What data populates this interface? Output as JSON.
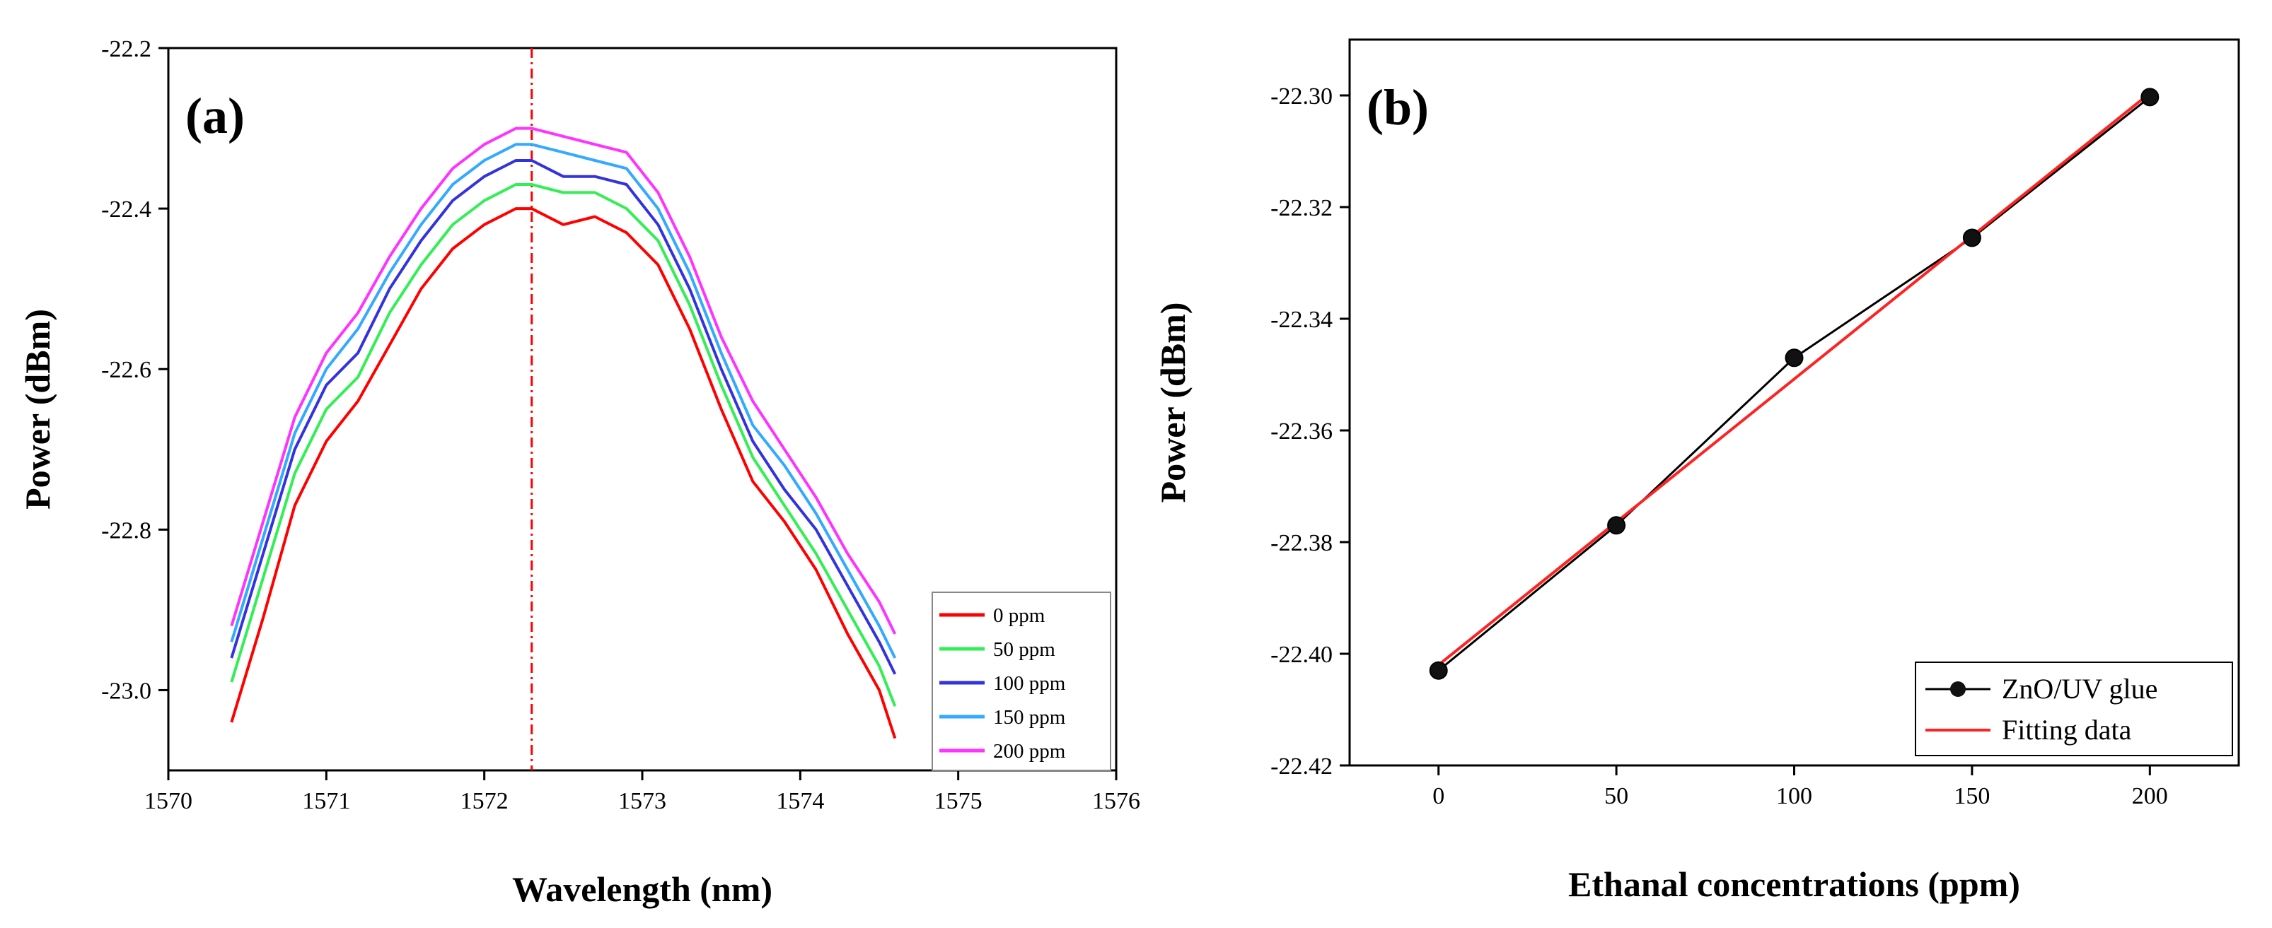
{
  "chart_data": [
    {
      "type": "line",
      "panel_label": "(a)",
      "xlabel": "Wavelength (nm)",
      "ylabel": "Power (dBm)",
      "xlim": [
        1570,
        1576
      ],
      "ylim": [
        -23.1,
        -22.2
      ],
      "xticks": [
        1570,
        1571,
        1572,
        1573,
        1574,
        1575,
        1576
      ],
      "yticks": [
        -22.2,
        -22.4,
        -22.6,
        -22.8,
        -23.0
      ],
      "xtick_labels": [
        "1570",
        "1571",
        "1572",
        "1573",
        "1574",
        "1575",
        "1576"
      ],
      "ytick_labels": [
        "-22.2",
        "-22.4",
        "-22.6",
        "-22.8",
        "-23.0"
      ],
      "vline_x": 1572.3,
      "legend_position": "bottom-right",
      "x": [
        1570.4,
        1570.6,
        1570.8,
        1571.0,
        1571.2,
        1571.4,
        1571.6,
        1571.8,
        1572.0,
        1572.2,
        1572.3,
        1572.5,
        1572.7,
        1572.9,
        1573.1,
        1573.3,
        1573.5,
        1573.7,
        1573.9,
        1574.1,
        1574.3,
        1574.5,
        1574.6
      ],
      "series": [
        {
          "name": "0 ppm",
          "color": "#ff0000",
          "values": [
            -23.04,
            -22.91,
            -22.77,
            -22.69,
            -22.64,
            -22.57,
            -22.5,
            -22.45,
            -22.42,
            -22.4,
            -22.4,
            -22.42,
            -22.41,
            -22.43,
            -22.47,
            -22.55,
            -22.65,
            -22.74,
            -22.79,
            -22.85,
            -22.93,
            -23.0,
            -23.06
          ]
        },
        {
          "name": "50 ppm",
          "color": "#33ee55",
          "values": [
            -22.99,
            -22.86,
            -22.73,
            -22.65,
            -22.61,
            -22.53,
            -22.47,
            -22.42,
            -22.39,
            -22.37,
            -22.37,
            -22.38,
            -22.38,
            -22.4,
            -22.44,
            -22.52,
            -22.62,
            -22.71,
            -22.77,
            -22.83,
            -22.9,
            -22.97,
            -23.02
          ]
        },
        {
          "name": "100 ppm",
          "color": "#3333dd",
          "values": [
            -22.96,
            -22.83,
            -22.7,
            -22.62,
            -22.58,
            -22.5,
            -22.44,
            -22.39,
            -22.36,
            -22.34,
            -22.34,
            -22.36,
            -22.36,
            -22.37,
            -22.42,
            -22.5,
            -22.6,
            -22.69,
            -22.75,
            -22.8,
            -22.87,
            -22.94,
            -22.98
          ]
        },
        {
          "name": "150 ppm",
          "color": "#33aaff",
          "values": [
            -22.94,
            -22.81,
            -22.68,
            -22.6,
            -22.55,
            -22.48,
            -22.42,
            -22.37,
            -22.34,
            -22.32,
            -22.32,
            -22.33,
            -22.34,
            -22.35,
            -22.4,
            -22.48,
            -22.58,
            -22.67,
            -22.72,
            -22.78,
            -22.85,
            -22.92,
            -22.96
          ]
        },
        {
          "name": "200 ppm",
          "color": "#ff33ff",
          "values": [
            -22.92,
            -22.79,
            -22.66,
            -22.58,
            -22.53,
            -22.46,
            -22.4,
            -22.35,
            -22.32,
            -22.3,
            -22.3,
            -22.31,
            -22.32,
            -22.33,
            -22.38,
            -22.46,
            -22.56,
            -22.64,
            -22.7,
            -22.76,
            -22.83,
            -22.89,
            -22.93
          ]
        }
      ]
    },
    {
      "type": "line",
      "panel_label": "(b)",
      "xlabel": "Ethanal concentrations (ppm)",
      "ylabel": "Power (dBm)",
      "xlim": [
        -25,
        225
      ],
      "ylim": [
        -22.42,
        -22.29
      ],
      "xticks": [
        0,
        50,
        100,
        150,
        200
      ],
      "yticks": [
        -22.3,
        -22.32,
        -22.34,
        -22.36,
        -22.38,
        -22.4,
        -22.42
      ],
      "xtick_labels": [
        "0",
        "50",
        "100",
        "150",
        "200"
      ],
      "ytick_labels": [
        "-22.30",
        "-22.32",
        "-22.34",
        "-22.36",
        "-22.38",
        "-22.40",
        "-22.42"
      ],
      "legend_position": "bottom-right",
      "series": [
        {
          "name": "ZnO/UV glue",
          "color": "#000000",
          "marker": "circle",
          "x": [
            0,
            50,
            100,
            150,
            200
          ],
          "values": [
            -22.403,
            -22.377,
            -22.347,
            -22.3255,
            -22.3003
          ]
        },
        {
          "name": "Fitting data",
          "color": "#ff2222",
          "marker": "none",
          "x": [
            0,
            200
          ],
          "values": [
            -22.402,
            -22.2996
          ]
        }
      ]
    }
  ]
}
